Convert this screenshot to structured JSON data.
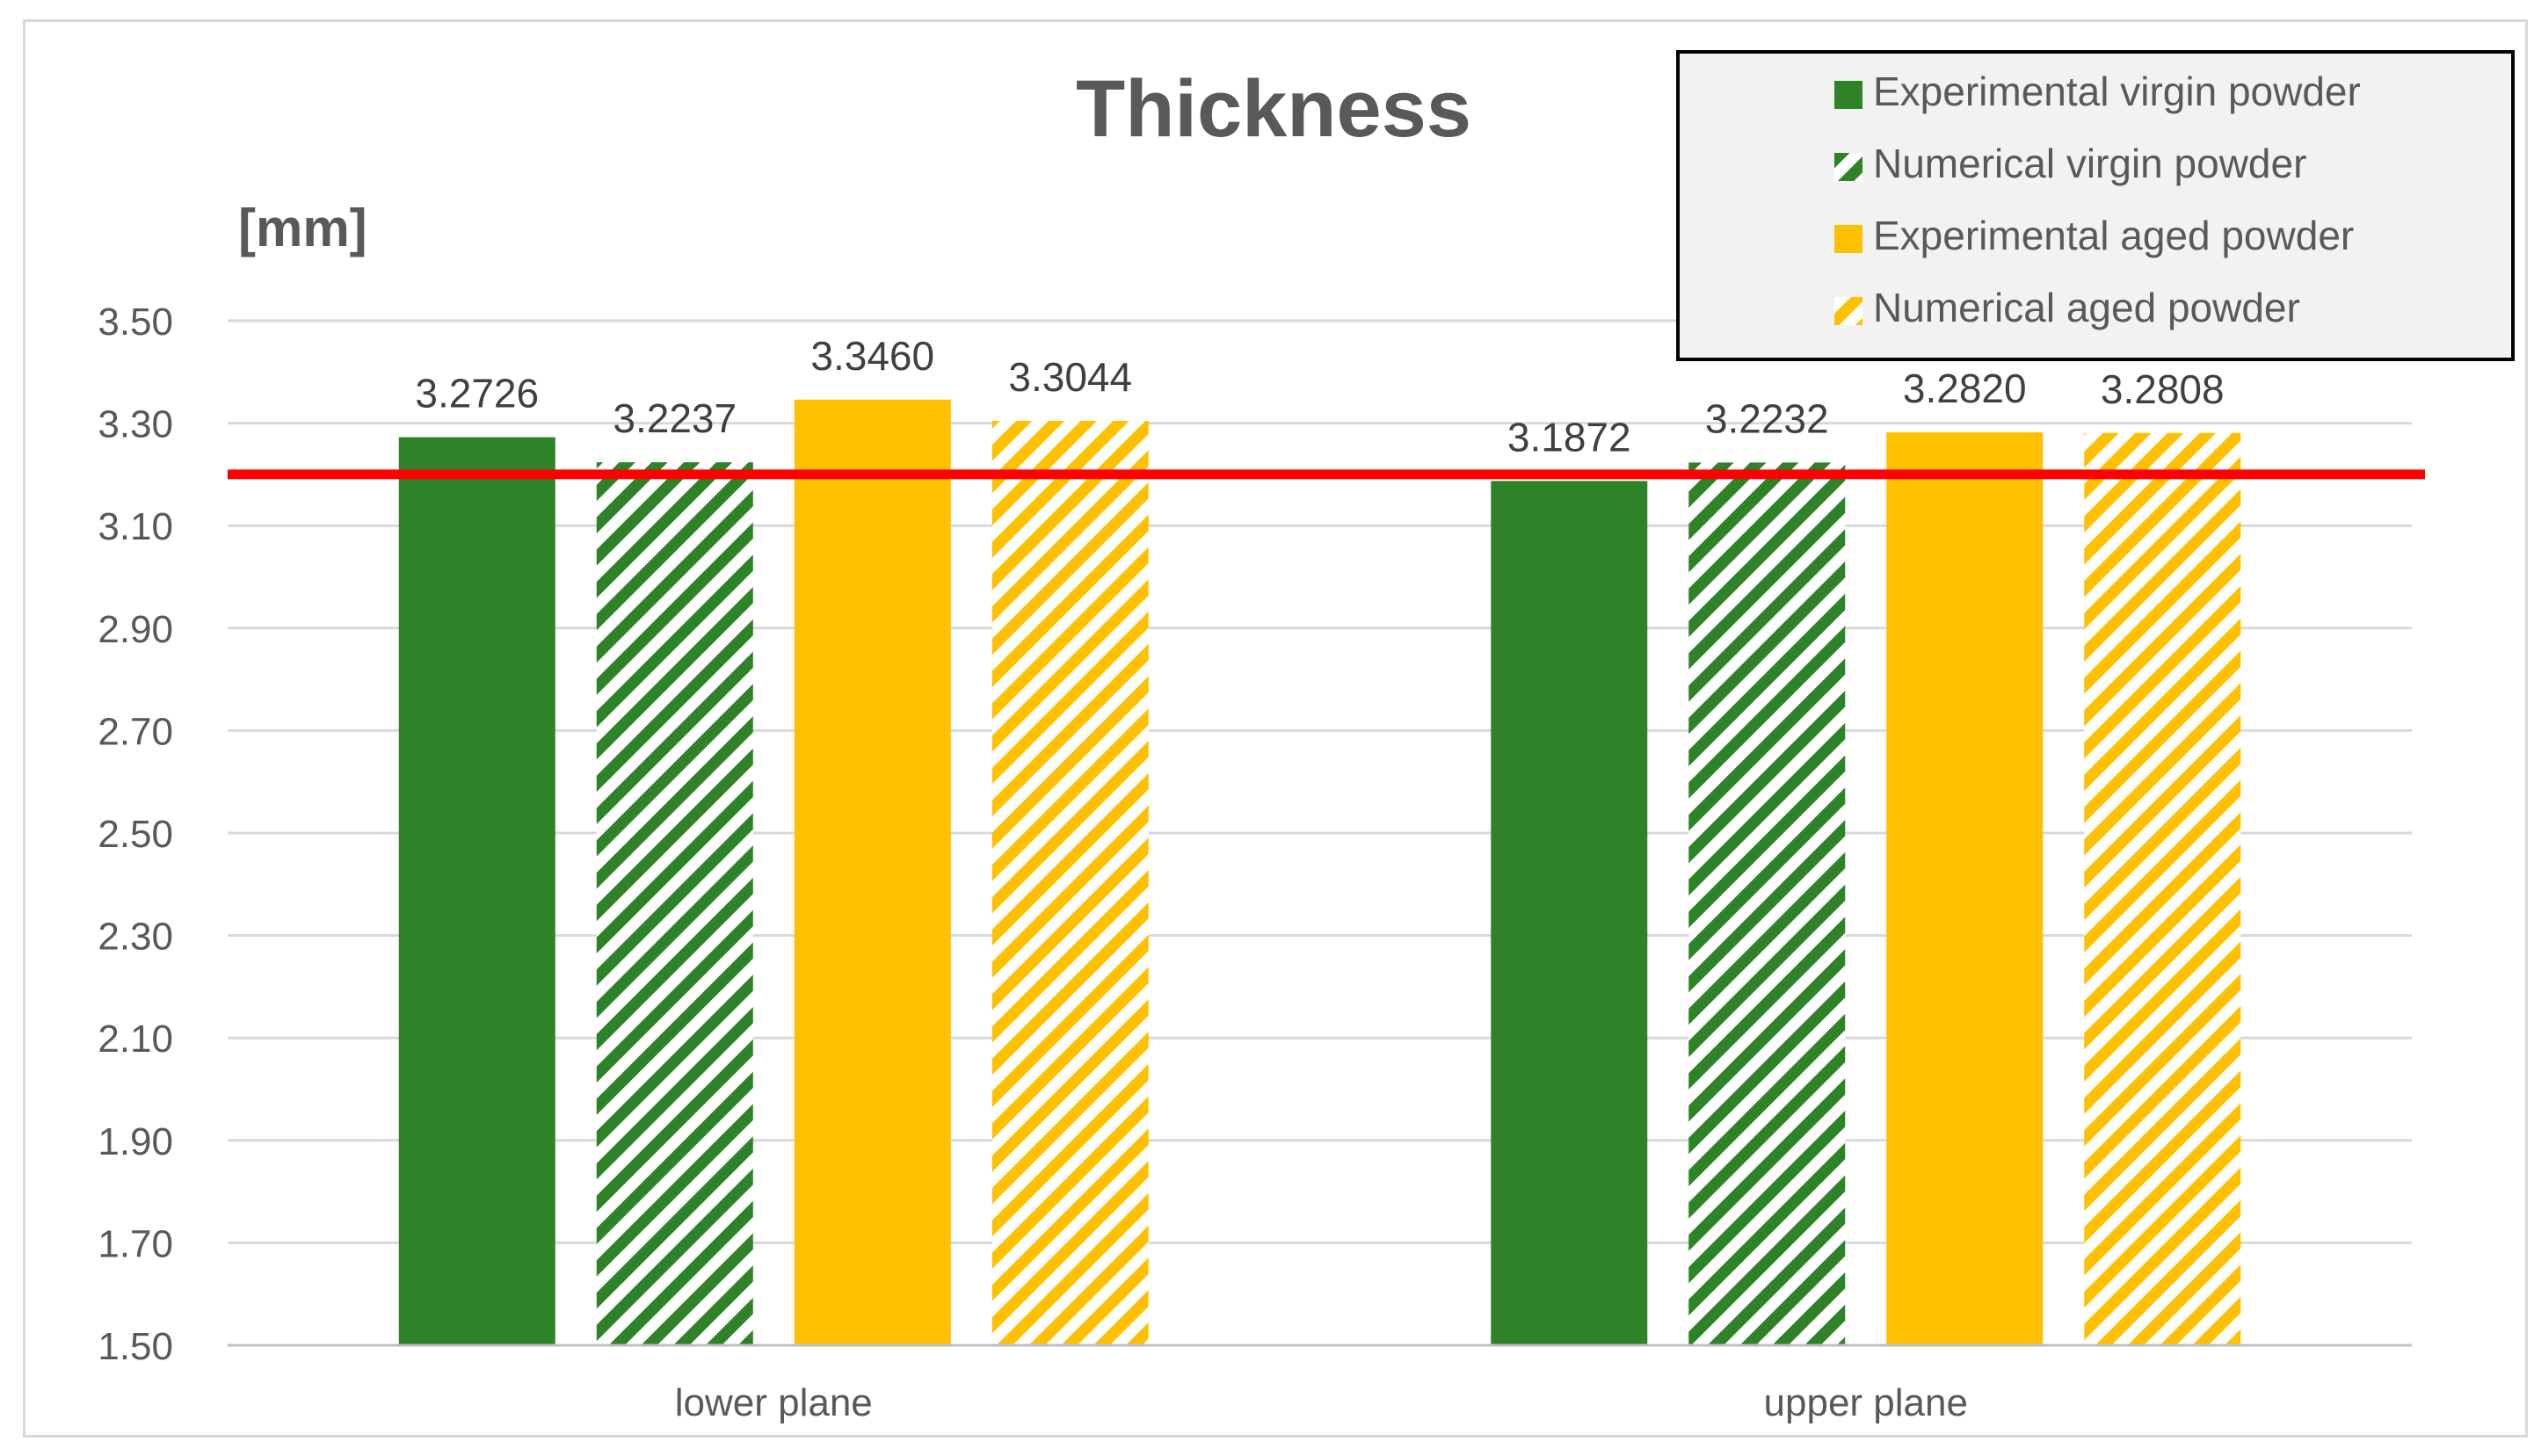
{
  "chart_data": {
    "type": "bar",
    "title": "Thickness",
    "ylabel": "[mm]",
    "xlabel": "",
    "categories": [
      "lower plane",
      "upper plane"
    ],
    "ylim": [
      1.5,
      3.5
    ],
    "yticks": [
      1.5,
      1.7,
      1.9,
      2.1,
      2.3,
      2.5,
      2.7,
      2.9,
      3.1,
      3.3,
      3.5
    ],
    "ytick_labels": [
      "1.50",
      "1.70",
      "1.90",
      "2.10",
      "2.30",
      "2.50",
      "2.70",
      "2.90",
      "3.10",
      "3.30",
      "3.50"
    ],
    "grid": true,
    "legend_position": "top-right",
    "reference_line": {
      "value": 3.2,
      "color": "#ff0000"
    },
    "series": [
      {
        "name": "Experimental virgin powder",
        "color": "#2e8228",
        "pattern": "solid",
        "values": [
          3.2726,
          3.1872
        ],
        "labels": [
          "3.2726",
          "3.1872"
        ]
      },
      {
        "name": "Numerical virgin powder",
        "color": "#2e8228",
        "pattern": "hatched",
        "values": [
          3.2237,
          3.2232
        ],
        "labels": [
          "3.2237",
          "3.2232"
        ]
      },
      {
        "name": "Experimental aged powder",
        "color": "#ffc000",
        "pattern": "solid",
        "values": [
          3.346,
          3.282
        ],
        "labels": [
          "3.3460",
          "3.2820"
        ]
      },
      {
        "name": "Numerical aged powder",
        "color": "#ffc000",
        "pattern": "hatched",
        "values": [
          3.3044,
          3.2808
        ],
        "labels": [
          "3.3044",
          "3.2808"
        ]
      }
    ]
  }
}
